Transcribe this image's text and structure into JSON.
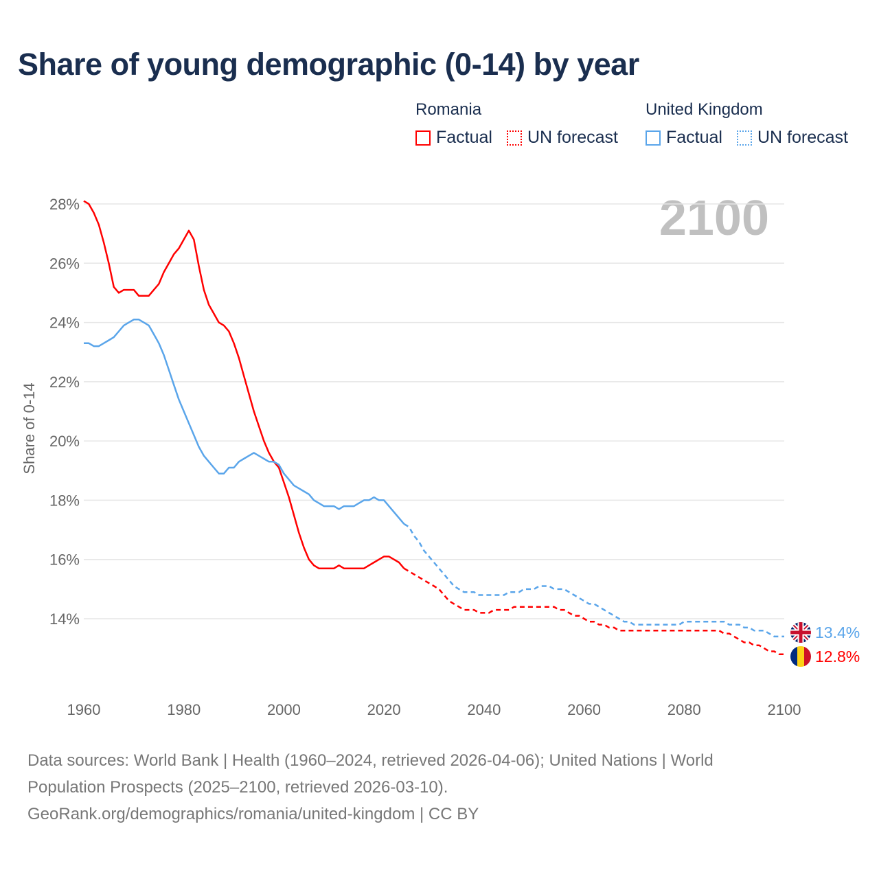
{
  "title": "Share of young demographic (0-14) by year",
  "legend": {
    "groups": [
      {
        "name": "Romania",
        "factual": "Factual",
        "forecast": "UN forecast",
        "color": "#ff0000"
      },
      {
        "name": "United Kingdom",
        "factual": "Factual",
        "forecast": "UN forecast",
        "color": "#5aa5ea"
      }
    ]
  },
  "year_display": "2100",
  "sources": [
    "Data sources: World Bank | Health (1960–2024, retrieved 2026-04-06); United Nations | World",
    "Population Prospects (2025–2100, retrieved 2026-03-10).",
    "GeoRank.org/demographics/romania/united-kingdom | CC BY"
  ],
  "chart_data": {
    "type": "line",
    "title": "Share of young demographic (0-14) by year",
    "xlabel": "",
    "ylabel": "Share of 0-14",
    "xlim": [
      1960,
      2100
    ],
    "ylim": [
      12,
      28
    ],
    "xticks": [
      "1960",
      "1980",
      "2000",
      "2020",
      "2040",
      "2060",
      "2080",
      "2100"
    ],
    "yticks": [
      "14%",
      "16%",
      "18%",
      "20%",
      "22%",
      "24%",
      "26%",
      "28%"
    ],
    "ytick_values": [
      14,
      16,
      18,
      20,
      22,
      24,
      26,
      28
    ],
    "xtick_values": [
      1960,
      1980,
      2000,
      2020,
      2040,
      2060,
      2080,
      2100
    ],
    "series": [
      {
        "name": "Romania",
        "color": "#ff0000",
        "end_label": "12.8%",
        "factual_start": 1960,
        "factual": [
          28.1,
          28.0,
          27.7,
          27.3,
          26.7,
          26.0,
          25.2,
          25.0,
          25.1,
          25.1,
          25.1,
          24.9,
          24.9,
          24.9,
          25.1,
          25.3,
          25.7,
          26.0,
          26.3,
          26.5,
          26.8,
          27.1,
          26.8,
          25.9,
          25.1,
          24.6,
          24.3,
          24.0,
          23.9,
          23.7,
          23.3,
          22.8,
          22.2,
          21.6,
          21.0,
          20.5,
          20.0,
          19.6,
          19.3,
          19.1,
          18.6,
          18.1,
          17.5,
          16.9,
          16.4,
          16.0,
          15.8,
          15.7,
          15.7,
          15.7,
          15.7,
          15.8,
          15.7,
          15.7,
          15.7,
          15.7,
          15.7,
          15.8,
          15.9,
          16.0,
          16.1,
          16.1,
          16.0,
          15.9,
          15.7
        ],
        "forecast_start": 2024,
        "forecast": [
          15.7,
          15.6,
          15.5,
          15.4,
          15.3,
          15.2,
          15.1,
          15.0,
          14.8,
          14.6,
          14.5,
          14.4,
          14.3,
          14.3,
          14.3,
          14.2,
          14.2,
          14.2,
          14.3,
          14.3,
          14.3,
          14.3,
          14.4,
          14.4,
          14.4,
          14.4,
          14.4,
          14.4,
          14.4,
          14.4,
          14.4,
          14.3,
          14.3,
          14.2,
          14.1,
          14.1,
          14.0,
          13.9,
          13.9,
          13.8,
          13.8,
          13.7,
          13.7,
          13.6,
          13.6,
          13.6,
          13.6,
          13.6,
          13.6,
          13.6,
          13.6,
          13.6,
          13.6,
          13.6,
          13.6,
          13.6,
          13.6,
          13.6,
          13.6,
          13.6,
          13.6,
          13.6,
          13.6,
          13.6,
          13.5,
          13.5,
          13.4,
          13.3,
          13.2,
          13.2,
          13.1,
          13.1,
          13.0,
          12.9,
          12.9,
          12.8,
          12.8
        ]
      },
      {
        "name": "United Kingdom",
        "color": "#5aa5ea",
        "end_label": "13.4%",
        "factual_start": 1960,
        "factual": [
          23.3,
          23.3,
          23.2,
          23.2,
          23.3,
          23.4,
          23.5,
          23.7,
          23.9,
          24.0,
          24.1,
          24.1,
          24.0,
          23.9,
          23.6,
          23.3,
          22.9,
          22.4,
          21.9,
          21.4,
          21.0,
          20.6,
          20.2,
          19.8,
          19.5,
          19.3,
          19.1,
          18.9,
          18.9,
          19.1,
          19.1,
          19.3,
          19.4,
          19.5,
          19.6,
          19.5,
          19.4,
          19.3,
          19.3,
          19.2,
          18.9,
          18.7,
          18.5,
          18.4,
          18.3,
          18.2,
          18.0,
          17.9,
          17.8,
          17.8,
          17.8,
          17.7,
          17.8,
          17.8,
          17.8,
          17.9,
          18.0,
          18.0,
          18.1,
          18.0,
          18.0,
          17.8,
          17.6,
          17.4,
          17.2
        ],
        "forecast_start": 2024,
        "forecast": [
          17.2,
          17.1,
          16.8,
          16.6,
          16.3,
          16.1,
          15.9,
          15.7,
          15.5,
          15.3,
          15.1,
          15.0,
          14.9,
          14.9,
          14.9,
          14.8,
          14.8,
          14.8,
          14.8,
          14.8,
          14.8,
          14.9,
          14.9,
          14.9,
          15.0,
          15.0,
          15.0,
          15.1,
          15.1,
          15.1,
          15.0,
          15.0,
          15.0,
          14.9,
          14.8,
          14.7,
          14.6,
          14.5,
          14.5,
          14.4,
          14.3,
          14.2,
          14.1,
          14.0,
          13.9,
          13.9,
          13.8,
          13.8,
          13.8,
          13.8,
          13.8,
          13.8,
          13.8,
          13.8,
          13.8,
          13.8,
          13.9,
          13.9,
          13.9,
          13.9,
          13.9,
          13.9,
          13.9,
          13.9,
          13.9,
          13.8,
          13.8,
          13.8,
          13.7,
          13.7,
          13.6,
          13.6,
          13.6,
          13.5,
          13.4,
          13.4,
          13.4
        ]
      }
    ]
  }
}
